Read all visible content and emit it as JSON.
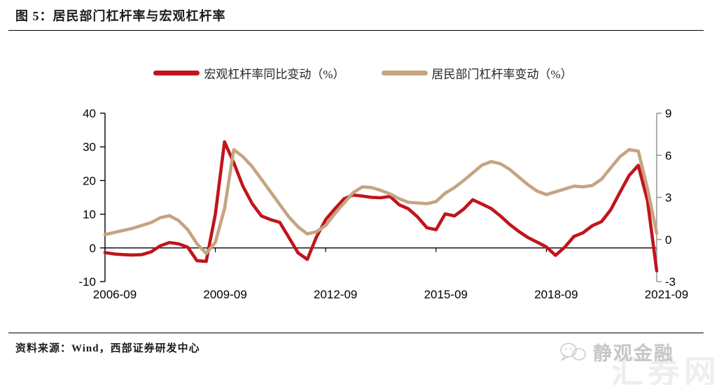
{
  "title": "图 5：居民部门杠杆率与宏观杠杆率",
  "source": "资料来源：Wind，西部证券研发中心",
  "watermark": {
    "brand": "静观金融",
    "background": "汇券网",
    "icon": "wechat-bubbles-icon"
  },
  "legend": [
    {
      "label": "宏观杠杆率同比变动（%）",
      "color": "#c1141c"
    },
    {
      "label": "居民部门杠杆率变动（%）",
      "color": "#c5a481"
    }
  ],
  "chart_data": {
    "type": "line",
    "title": "居民部门杠杆率与宏观杠杆率",
    "x": [
      "2006-09",
      "2006-12",
      "2007-03",
      "2007-06",
      "2007-09",
      "2007-12",
      "2008-03",
      "2008-06",
      "2008-09",
      "2008-12",
      "2009-03",
      "2009-06",
      "2009-09",
      "2009-12",
      "2010-03",
      "2010-06",
      "2010-09",
      "2010-12",
      "2011-03",
      "2011-06",
      "2011-09",
      "2011-12",
      "2012-03",
      "2012-06",
      "2012-09",
      "2012-12",
      "2013-03",
      "2013-06",
      "2013-09",
      "2013-12",
      "2014-03",
      "2014-06",
      "2014-09",
      "2014-12",
      "2015-03",
      "2015-06",
      "2015-09",
      "2015-12",
      "2016-03",
      "2016-06",
      "2016-09",
      "2016-12",
      "2017-03",
      "2017-06",
      "2017-09",
      "2017-12",
      "2018-03",
      "2018-06",
      "2018-09",
      "2018-12",
      "2019-03",
      "2019-06",
      "2019-09",
      "2019-12",
      "2020-03",
      "2020-06",
      "2020-09",
      "2020-12",
      "2021-03",
      "2021-06",
      "2021-09"
    ],
    "x_tick_labels": [
      "2006-09",
      "2009-09",
      "2012-09",
      "2015-09",
      "2018-09",
      "2021-09"
    ],
    "series": [
      {
        "name": "宏观杠杆率同比变动（%）",
        "axis": "left",
        "color": "#c1141c",
        "values": [
          -1.4,
          -1.8,
          -2.0,
          -2.1,
          -2.0,
          -1.2,
          0.6,
          1.6,
          1.2,
          0.2,
          -3.8,
          -4.0,
          10.0,
          31.5,
          25.3,
          18.3,
          13.2,
          9.5,
          8.4,
          7.6,
          3.1,
          -1.5,
          -3.4,
          3.3,
          8.4,
          11.6,
          14.6,
          15.7,
          15.4,
          15.0,
          14.9,
          15.3,
          12.8,
          11.6,
          9.2,
          6.0,
          5.4,
          10.1,
          9.5,
          11.5,
          14.3,
          13.0,
          11.7,
          9.5,
          7.0,
          4.9,
          3.1,
          1.7,
          0.3,
          -2.2,
          0.2,
          3.4,
          4.5,
          6.6,
          7.8,
          11.3,
          16.5,
          21.5,
          24.5,
          14.0,
          -6.8
        ]
      },
      {
        "name": "居民部门杠杆率变动（%）",
        "axis": "right",
        "color": "#c5a481",
        "values": [
          0.35,
          0.5,
          0.65,
          0.8,
          1.0,
          1.2,
          1.55,
          1.7,
          1.35,
          0.7,
          -0.3,
          -1.0,
          -0.2,
          2.2,
          6.4,
          5.9,
          5.2,
          4.3,
          3.4,
          2.5,
          1.6,
          0.9,
          0.4,
          0.55,
          1.0,
          1.85,
          2.6,
          3.35,
          3.75,
          3.7,
          3.5,
          3.25,
          2.9,
          2.65,
          2.6,
          2.55,
          2.7,
          3.3,
          3.7,
          4.2,
          4.75,
          5.3,
          5.55,
          5.4,
          5.0,
          4.45,
          3.9,
          3.45,
          3.2,
          3.4,
          3.6,
          3.8,
          3.75,
          3.85,
          4.3,
          5.1,
          5.9,
          6.4,
          6.3,
          3.6,
          0.45
        ]
      }
    ],
    "left_axis": {
      "min": -10,
      "max": 40,
      "ticks": [
        40,
        30,
        20,
        10,
        0,
        -10
      ]
    },
    "right_axis": {
      "min": -3,
      "max": 9,
      "ticks": [
        9,
        6,
        3,
        0,
        -3
      ]
    },
    "grid": false,
    "legend_position": "top-center",
    "colors": {
      "zero_axis": "#000000",
      "right_axis_line": "#909090"
    }
  }
}
